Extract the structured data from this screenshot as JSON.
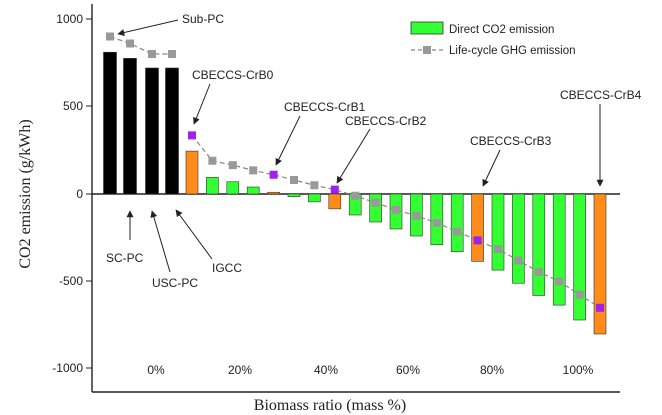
{
  "chart_data": {
    "type": "bar",
    "title": "",
    "xlabel": "Biomass ratio (mass %)",
    "ylabel": "CO2 emission (g/kWh)",
    "ylim": [
      -1000,
      1000
    ],
    "yticks": [
      1000,
      500,
      0,
      -500,
      -1000
    ],
    "xtick_labels": [
      "0%",
      "20%",
      "40%",
      "60%",
      "80%",
      "100%"
    ],
    "legend": {
      "position": "top-right",
      "bar_label": "Direct CO2 emission",
      "line_label": "Life-cycle GHG emission"
    },
    "colors": {
      "conventional": "#000000",
      "direct": "#33ff33",
      "highlight": "#ff8c1a",
      "lifecycle_line": "#888888",
      "lifecycle_marker": "#999999",
      "highlight_marker": "#a020f0"
    },
    "conventional_plants": [
      {
        "name": "SC-PC",
        "direct": 810,
        "lifecycle": 900
      },
      {
        "name": "USC-PC",
        "direct": 775,
        "lifecycle": 860
      },
      {
        "name": "IGCC",
        "direct": 720,
        "lifecycle": 800
      },
      {
        "name": "Sub-PC",
        "direct": 720,
        "lifecycle": 800
      }
    ],
    "ccs_series": [
      {
        "x": 0,
        "direct": 245,
        "lifecycle": 335,
        "highlight": true
      },
      {
        "x": 5,
        "direct": 95,
        "lifecycle": 190,
        "highlight": false
      },
      {
        "x": 10,
        "direct": 70,
        "lifecycle": 165,
        "highlight": false
      },
      {
        "x": 15,
        "direct": 40,
        "lifecycle": 135,
        "highlight": false
      },
      {
        "x": 20,
        "direct": 10,
        "lifecycle": 110,
        "highlight": true
      },
      {
        "x": 25,
        "direct": -15,
        "lifecycle": 80,
        "highlight": false
      },
      {
        "x": 30,
        "direct": -45,
        "lifecycle": 50,
        "highlight": false
      },
      {
        "x": 35,
        "direct": -85,
        "lifecycle": 25,
        "highlight": true
      },
      {
        "x": 40,
        "direct": -120,
        "lifecycle": -10,
        "highlight": false
      },
      {
        "x": 45,
        "direct": -160,
        "lifecycle": -50,
        "highlight": false
      },
      {
        "x": 50,
        "direct": -200,
        "lifecycle": -90,
        "highlight": false
      },
      {
        "x": 55,
        "direct": -240,
        "lifecycle": -125,
        "highlight": false
      },
      {
        "x": 60,
        "direct": -290,
        "lifecycle": -165,
        "highlight": false
      },
      {
        "x": 65,
        "direct": -330,
        "lifecycle": -215,
        "highlight": false
      },
      {
        "x": 70,
        "direct": -385,
        "lifecycle": -265,
        "highlight": true
      },
      {
        "x": 75,
        "direct": -435,
        "lifecycle": -315,
        "highlight": false
      },
      {
        "x": 80,
        "direct": -510,
        "lifecycle": -380,
        "highlight": false
      },
      {
        "x": 85,
        "direct": -580,
        "lifecycle": -445,
        "highlight": false
      },
      {
        "x": 90,
        "direct": -635,
        "lifecycle": -500,
        "highlight": false
      },
      {
        "x": 95,
        "direct": -720,
        "lifecycle": -575,
        "highlight": false
      },
      {
        "x": 100,
        "direct": -800,
        "lifecycle": -650,
        "highlight": true
      }
    ],
    "annotations": [
      {
        "text": "Sub-PC",
        "target": "conventional_lifecycle"
      },
      {
        "text": "SC-PC",
        "target": "conventional-1"
      },
      {
        "text": "USC-PC",
        "target": "conventional-2"
      },
      {
        "text": "IGCC",
        "target": "conventional-3"
      },
      {
        "text": "CBECCS-CrB0",
        "target": "ccs-0"
      },
      {
        "text": "CBECCS-CrB1",
        "target": "ccs-20"
      },
      {
        "text": "CBECCS-CrB2",
        "target": "ccs-35"
      },
      {
        "text": "CBECCS-CrB3",
        "target": "ccs-70"
      },
      {
        "text": "CBECCS-CrB4",
        "target": "ccs-100"
      }
    ]
  }
}
